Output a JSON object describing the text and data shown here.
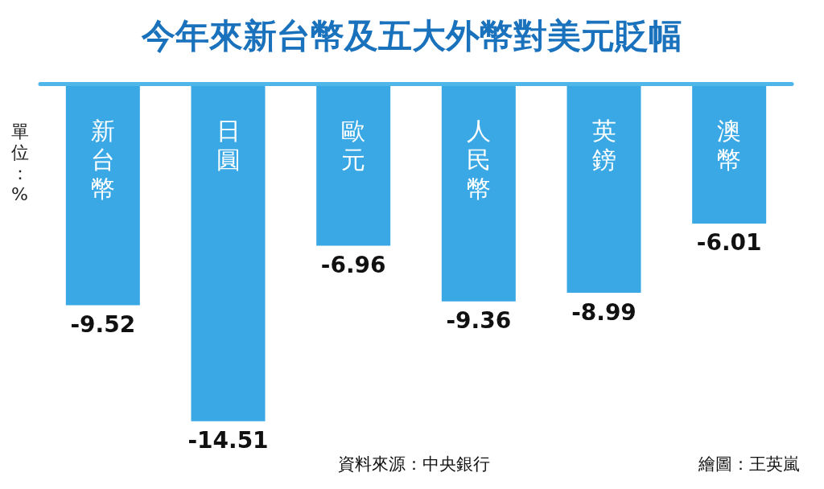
{
  "chart_data": {
    "type": "bar",
    "title": "今年來新台幣及五大外幣對美元貶幅",
    "ylabel": "單位：%",
    "categories": [
      "新台幣",
      "日圓",
      "歐元",
      "人民幣",
      "英鎊",
      "澳幣"
    ],
    "values": [
      -9.52,
      -14.51,
      -6.96,
      -9.36,
      -8.99,
      -6.01
    ],
    "color": "#3aa8e4",
    "data_labels": true,
    "annotations": [
      "資料來源：中央銀行",
      "繪圖：王英嵐"
    ]
  }
}
